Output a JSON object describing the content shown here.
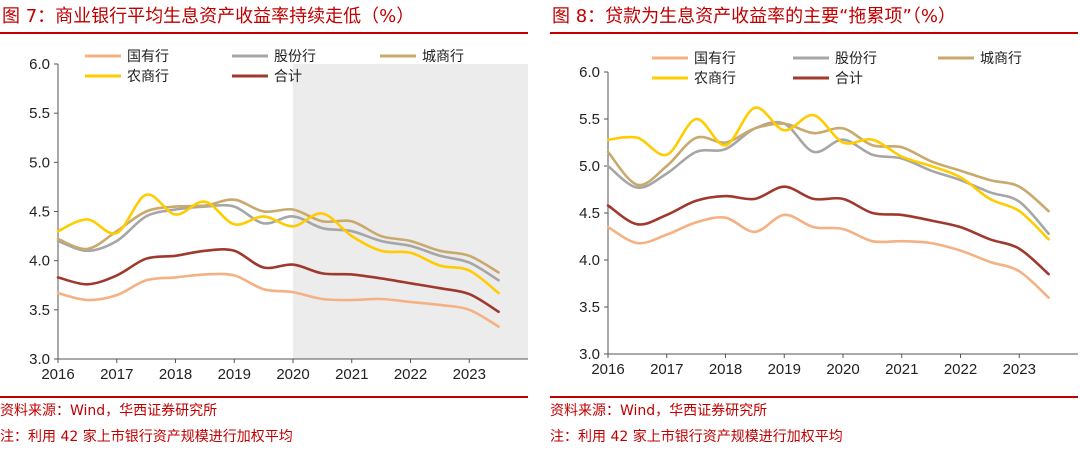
{
  "charts": [
    {
      "title": "图 7：商业银行平均生息资产收益率持续走低（%）",
      "source": "资料来源：Wind，华西证券研究所",
      "note": "注：利用 42 家上市银行资产规模进行加权平均",
      "chart_data": {
        "type": "line",
        "x_ticks": [
          "2016",
          "2017",
          "2018",
          "2019",
          "2020",
          "2021",
          "2022",
          "2023"
        ],
        "x_range": [
          2016,
          2024
        ],
        "ylim": [
          3.0,
          6.0
        ],
        "y_ticks": [
          "3.0",
          "3.5",
          "4.0",
          "4.5",
          "5.0",
          "5.5",
          "6.0"
        ],
        "shaded_from": 2020,
        "legend": [
          "国有行",
          "股份行",
          "城商行",
          "农商行",
          "合计"
        ],
        "series": [
          {
            "name": "国有行",
            "color": "#f4b183",
            "x": [
              2016,
              2016.5,
              2017,
              2017.5,
              2018,
              2018.5,
              2019,
              2019.5,
              2020,
              2020.5,
              2021,
              2021.5,
              2022,
              2022.5,
              2023,
              2023.5
            ],
            "values": [
              3.67,
              3.6,
              3.65,
              3.8,
              3.83,
              3.86,
              3.85,
              3.71,
              3.68,
              3.61,
              3.6,
              3.61,
              3.58,
              3.55,
              3.5,
              3.33
            ]
          },
          {
            "name": "股份行",
            "color": "#a6a6a6",
            "x": [
              2016,
              2016.5,
              2017,
              2017.5,
              2018,
              2018.5,
              2019,
              2019.5,
              2020,
              2020.5,
              2021,
              2021.5,
              2022,
              2022.5,
              2023,
              2023.5
            ],
            "values": [
              4.2,
              4.1,
              4.2,
              4.45,
              4.52,
              4.55,
              4.55,
              4.38,
              4.45,
              4.33,
              4.3,
              4.2,
              4.15,
              4.05,
              3.98,
              3.8
            ]
          },
          {
            "name": "城商行",
            "color": "#c9a96e",
            "x": [
              2016,
              2016.5,
              2017,
              2017.5,
              2018,
              2018.5,
              2019,
              2019.5,
              2020,
              2020.5,
              2021,
              2021.5,
              2022,
              2022.5,
              2023,
              2023.5
            ],
            "values": [
              4.22,
              4.12,
              4.3,
              4.5,
              4.55,
              4.56,
              4.62,
              4.5,
              4.52,
              4.4,
              4.4,
              4.25,
              4.2,
              4.1,
              4.05,
              3.88
            ]
          },
          {
            "name": "农商行",
            "color": "#ffcc00",
            "x": [
              2016,
              2016.5,
              2017,
              2017.5,
              2018,
              2018.5,
              2019,
              2019.5,
              2020,
              2020.5,
              2021,
              2021.5,
              2022,
              2022.5,
              2023,
              2023.5
            ],
            "values": [
              4.3,
              4.42,
              4.28,
              4.67,
              4.47,
              4.6,
              4.37,
              4.45,
              4.35,
              4.48,
              4.25,
              4.1,
              4.08,
              3.95,
              3.9,
              3.67
            ]
          },
          {
            "name": "合计",
            "color": "#a0392d",
            "x": [
              2016,
              2016.5,
              2017,
              2017.5,
              2018,
              2018.5,
              2019,
              2019.5,
              2020,
              2020.5,
              2021,
              2021.5,
              2022,
              2022.5,
              2023,
              2023.5
            ],
            "values": [
              3.83,
              3.76,
              3.85,
              4.02,
              4.05,
              4.1,
              4.1,
              3.93,
              3.96,
              3.87,
              3.86,
              3.82,
              3.77,
              3.72,
              3.66,
              3.48
            ]
          }
        ]
      }
    },
    {
      "title": "图 8：贷款为生息资产收益率的主要“拖累项”（%）",
      "source": "资料来源：Wind，华西证券研究所",
      "note": "注：利用 42 家上市银行资产规模进行加权平均",
      "chart_data": {
        "type": "line",
        "x_ticks": [
          "2016",
          "2017",
          "2018",
          "2019",
          "2020",
          "2021",
          "2022",
          "2023"
        ],
        "x_range": [
          2016,
          2024
        ],
        "ylim": [
          3.0,
          6.0
        ],
        "y_ticks": [
          "3.0",
          "3.5",
          "4.0",
          "4.5",
          "5.0",
          "5.5",
          "6.0"
        ],
        "shaded_from": null,
        "legend": [
          "国有行",
          "股份行",
          "城商行",
          "农商行",
          "合计"
        ],
        "series": [
          {
            "name": "国有行",
            "color": "#f4b183",
            "x": [
              2016,
              2016.5,
              2017,
              2017.5,
              2018,
              2018.5,
              2019,
              2019.5,
              2020,
              2020.5,
              2021,
              2021.5,
              2022,
              2022.5,
              2023,
              2023.5
            ],
            "values": [
              4.35,
              4.18,
              4.27,
              4.4,
              4.45,
              4.3,
              4.48,
              4.35,
              4.33,
              4.2,
              4.2,
              4.18,
              4.1,
              3.98,
              3.88,
              3.6
            ]
          },
          {
            "name": "股份行",
            "color": "#a6a6a6",
            "x": [
              2016,
              2016.5,
              2017,
              2017.5,
              2018,
              2018.5,
              2019,
              2019.5,
              2020,
              2020.5,
              2021,
              2021.5,
              2022,
              2022.5,
              2023,
              2023.5
            ],
            "values": [
              5.0,
              4.77,
              4.92,
              5.15,
              5.18,
              5.4,
              5.45,
              5.15,
              5.28,
              5.12,
              5.08,
              4.95,
              4.85,
              4.72,
              4.62,
              4.28
            ]
          },
          {
            "name": "城商行",
            "color": "#c9a96e",
            "x": [
              2016,
              2016.5,
              2017,
              2017.5,
              2018,
              2018.5,
              2019,
              2019.5,
              2020,
              2020.5,
              2021,
              2021.5,
              2022,
              2022.5,
              2023,
              2023.5
            ],
            "values": [
              5.15,
              4.8,
              5.0,
              5.3,
              5.25,
              5.4,
              5.45,
              5.35,
              5.4,
              5.22,
              5.2,
              5.05,
              4.95,
              4.85,
              4.78,
              4.52
            ]
          },
          {
            "name": "农商行",
            "color": "#ffcc00",
            "x": [
              2016,
              2016.5,
              2017,
              2017.5,
              2018,
              2018.5,
              2019,
              2019.5,
              2020,
              2020.5,
              2021,
              2021.5,
              2022,
              2022.5,
              2023,
              2023.5
            ],
            "values": [
              5.28,
              5.3,
              5.12,
              5.5,
              5.22,
              5.62,
              5.38,
              5.54,
              5.25,
              5.28,
              5.1,
              5.0,
              4.88,
              4.65,
              4.52,
              4.22
            ]
          },
          {
            "name": "合计",
            "color": "#a0392d",
            "x": [
              2016,
              2016.5,
              2017,
              2017.5,
              2018,
              2018.5,
              2019,
              2019.5,
              2020,
              2020.5,
              2021,
              2021.5,
              2022,
              2022.5,
              2023,
              2023.5
            ],
            "values": [
              4.58,
              4.38,
              4.48,
              4.63,
              4.68,
              4.65,
              4.78,
              4.65,
              4.65,
              4.5,
              4.48,
              4.42,
              4.35,
              4.22,
              4.12,
              3.85
            ]
          }
        ]
      }
    }
  ]
}
